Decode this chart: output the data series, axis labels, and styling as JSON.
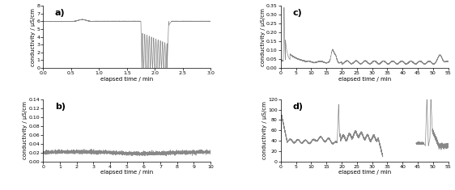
{
  "fig_width": 5.62,
  "fig_height": 2.35,
  "background_color": "#ffffff",
  "line_color": "#888888",
  "line_width": 0.5,
  "label_fontsize": 5.0,
  "tick_fontsize": 4.5,
  "panel_label_fontsize": 8,
  "panels": {
    "a": {
      "xlabel": "elapsed time / min",
      "ylabel": "conductivity / μS/cm",
      "xlim": [
        0,
        3.0
      ],
      "ylim": [
        0,
        8
      ],
      "xticks": [
        0,
        0.5,
        1.0,
        1.5,
        2.0,
        2.5,
        3.0
      ],
      "yticks": [
        0,
        1,
        2,
        3,
        4,
        5,
        6,
        7,
        8
      ]
    },
    "b": {
      "xlabel": "elapsed time / min",
      "ylabel": "conductivity / μS/cm",
      "xlim": [
        0,
        10
      ],
      "ylim": [
        0,
        0.14
      ],
      "xticks": [
        0,
        1,
        2,
        3,
        4,
        5,
        6,
        7,
        8,
        9,
        10
      ],
      "yticks": [
        0,
        0.02,
        0.04,
        0.06,
        0.08,
        0.1,
        0.12,
        0.14
      ]
    },
    "c": {
      "xlabel": "elapsed time / min",
      "ylabel": "conductivity / μS/cm",
      "xlim": [
        0,
        55
      ],
      "ylim": [
        0,
        0.35
      ],
      "xticks": [
        0,
        5,
        10,
        15,
        20,
        25,
        30,
        35,
        40,
        45,
        50,
        55
      ],
      "yticks": [
        0.0,
        0.05,
        0.1,
        0.15,
        0.2,
        0.25,
        0.3,
        0.35
      ]
    },
    "d": {
      "xlabel": "elapsed time / min",
      "ylabel": "conductivity / μS/cm",
      "xlim": [
        0,
        55
      ],
      "ylim": [
        0,
        120
      ],
      "xticks": [
        0,
        5,
        10,
        15,
        20,
        25,
        30,
        35,
        40,
        45,
        50,
        55
      ],
      "yticks": [
        0,
        20,
        40,
        60,
        80,
        100,
        120
      ]
    }
  }
}
